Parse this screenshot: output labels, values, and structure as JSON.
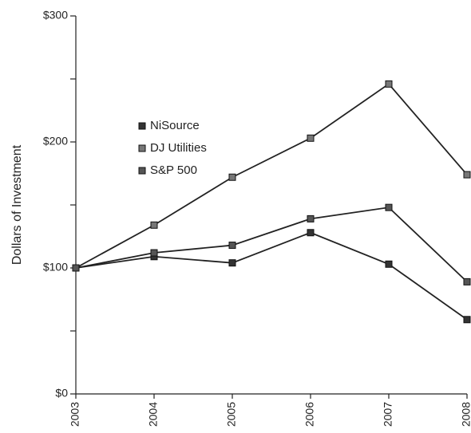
{
  "chart_data": {
    "type": "line",
    "y_label": "Dollars of Investment",
    "categories": [
      "2003",
      "2004",
      "2005",
      "2006",
      "2007",
      "2008"
    ],
    "series": [
      {
        "name": "NiSource",
        "color": "#222222",
        "marker_color": "#333333",
        "values": [
          100,
          109,
          104,
          128,
          103,
          59
        ]
      },
      {
        "name": "DJ Utilities",
        "color": "#222222",
        "marker_color": "#777777",
        "values": [
          100,
          134,
          172,
          203,
          246,
          174
        ]
      },
      {
        "name": "S&P 500",
        "color": "#222222",
        "marker_color": "#555555",
        "values": [
          100,
          112,
          118,
          139,
          148,
          89
        ]
      }
    ],
    "ylim": [
      0,
      300
    ],
    "yticks": [
      {
        "value": 0,
        "label": "$0"
      },
      {
        "value": 100,
        "label": "$100"
      },
      {
        "value": 200,
        "label": "$200"
      },
      {
        "value": 300,
        "label": "$300"
      }
    ],
    "minor_yticks": [
      50,
      150,
      250
    ],
    "grid": false
  }
}
